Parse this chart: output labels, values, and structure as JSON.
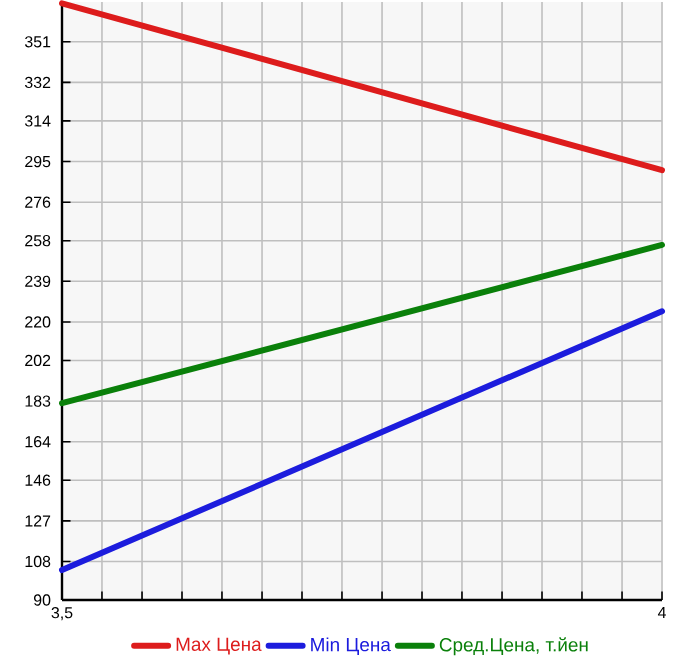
{
  "chart_data": {
    "type": "line",
    "x": [
      3.5,
      4
    ],
    "series": [
      {
        "name": "Max Цена",
        "color": "#dd1c1c",
        "values": [
          369,
          291
        ]
      },
      {
        "name": "Min Цена",
        "color": "#1c1cdd",
        "values": [
          104,
          225
        ]
      },
      {
        "name": "Сред.Цена, т.йен",
        "color": "#0a800a",
        "values": [
          182,
          256
        ]
      }
    ],
    "xlim": [
      3.5,
      4
    ],
    "ylim": [
      90,
      369.6
    ],
    "xticks": [
      {
        "value": 3.5,
        "label": "3,5"
      },
      {
        "value": 3.5333,
        "label": null
      },
      {
        "value": 3.5667,
        "label": null
      },
      {
        "value": 3.6,
        "label": null
      },
      {
        "value": 3.6333,
        "label": null
      },
      {
        "value": 3.6667,
        "label": null
      },
      {
        "value": 3.7,
        "label": null
      },
      {
        "value": 3.7333,
        "label": null
      },
      {
        "value": 3.7667,
        "label": null
      },
      {
        "value": 3.8,
        "label": null
      },
      {
        "value": 3.8333,
        "label": null
      },
      {
        "value": 3.8667,
        "label": null
      },
      {
        "value": 3.9,
        "label": null
      },
      {
        "value": 3.9333,
        "label": null
      },
      {
        "value": 3.9667,
        "label": null
      },
      {
        "value": 4,
        "label": "4"
      }
    ],
    "yticks": [
      90,
      108,
      127,
      146,
      164,
      183,
      202,
      220,
      239,
      258,
      276,
      295,
      314,
      332,
      351
    ],
    "grid": true,
    "legend": "bottom"
  }
}
